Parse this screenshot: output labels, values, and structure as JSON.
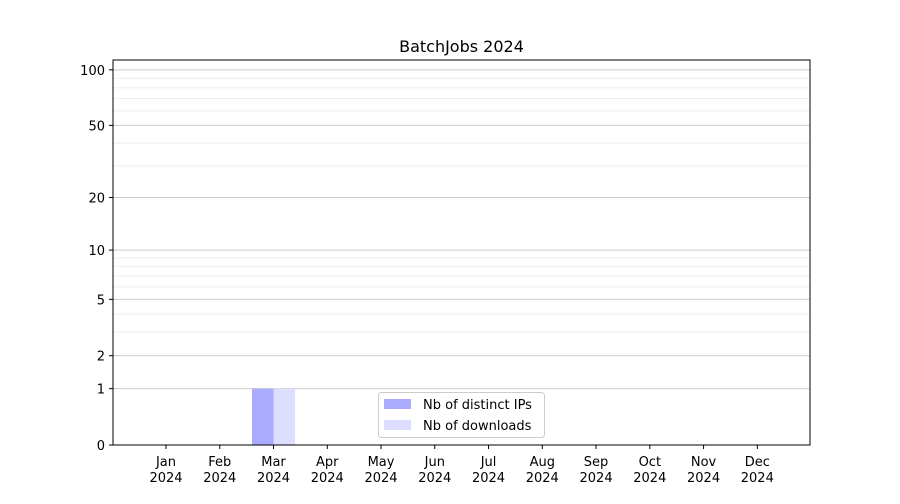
{
  "chart_data": {
    "type": "bar",
    "title": "BatchJobs 2024",
    "xlabel": "",
    "ylabel": "",
    "categories": [
      "Jan\n2024",
      "Feb\n2024",
      "Mar\n2024",
      "Apr\n2024",
      "May\n2024",
      "Jun\n2024",
      "Jul\n2024",
      "Aug\n2024",
      "Sep\n2024",
      "Oct\n2024",
      "Nov\n2024",
      "Dec\n2024"
    ],
    "series": [
      {
        "name": "Nb of distinct IPs",
        "color": "#aaaaff",
        "values": [
          0,
          0,
          1,
          0,
          0,
          0,
          0,
          0,
          0,
          0,
          0,
          0
        ]
      },
      {
        "name": "Nb of downloads",
        "color": "#ddddff",
        "values": [
          0,
          0,
          1,
          0,
          0,
          0,
          0,
          0,
          0,
          0,
          0,
          0
        ]
      }
    ],
    "y_scale": "log10(1+y)",
    "ylim": [
      0,
      113
    ],
    "yticks": [
      0,
      1,
      2,
      5,
      10,
      20,
      50,
      100
    ],
    "y_minor_grid": [
      3,
      4,
      6,
      7,
      8,
      9,
      30,
      40,
      60,
      70,
      80,
      90
    ],
    "grid": true,
    "legend_placement": "lower-center"
  }
}
